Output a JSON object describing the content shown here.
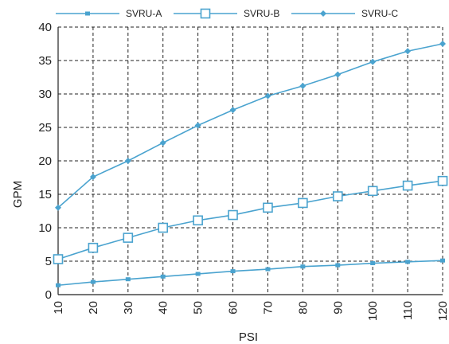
{
  "chart_data": {
    "type": "line",
    "title": "",
    "xlabel": "PSI",
    "ylabel": "GPM",
    "x": [
      10,
      20,
      30,
      40,
      50,
      60,
      70,
      80,
      90,
      100,
      110,
      120
    ],
    "xlim": [
      10,
      120
    ],
    "ylim": [
      0,
      40
    ],
    "yticks": [
      0,
      5,
      10,
      15,
      20,
      25,
      30,
      35,
      40
    ],
    "grid": true,
    "legend_position": "top",
    "series": [
      {
        "name": "SVRU-A",
        "marker": "small-square",
        "color": "#4aa3cf",
        "values": [
          1.4,
          1.9,
          2.3,
          2.7,
          3.1,
          3.5,
          3.8,
          4.2,
          4.4,
          4.7,
          4.9,
          5.1
        ]
      },
      {
        "name": "SVRU-B",
        "marker": "open-square",
        "color": "#4aa3cf",
        "values": [
          5.3,
          7.0,
          8.5,
          10.0,
          11.1,
          11.9,
          13.0,
          13.7,
          14.7,
          15.5,
          16.3,
          17.0
        ]
      },
      {
        "name": "SVRU-C",
        "marker": "diamond",
        "color": "#4aa3cf",
        "values": [
          13.0,
          17.6,
          20.0,
          22.7,
          25.3,
          27.6,
          29.7,
          31.2,
          32.9,
          34.8,
          36.4,
          37.5
        ]
      }
    ]
  }
}
